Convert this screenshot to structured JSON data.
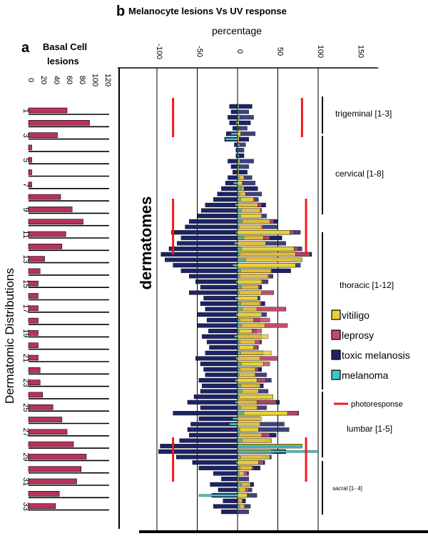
{
  "colors": {
    "vitiligo": "#e8d23a",
    "leprosy": "#c84a68",
    "toxic_melanosis": "#1c2466",
    "melanoma": "#3ec6cc",
    "photoresponse": "#ee1c1c",
    "basal": "#b8325a"
  },
  "chart_data": [
    {
      "panel": "a",
      "type": "bar",
      "orientation": "horizontal",
      "title": "Basal Cell lesions",
      "ylabel": "Dermatomic Distributions",
      "xlim": [
        0,
        120
      ],
      "x_ticks": [
        "0",
        "20",
        "40",
        "60",
        "80",
        "100",
        "120"
      ],
      "categories": [
        "1",
        "2",
        "3",
        "4",
        "5",
        "6",
        "7",
        "8",
        "9",
        "10",
        "11",
        "12",
        "13",
        "14",
        "15",
        "16",
        "17",
        "18",
        "19",
        "20",
        "21",
        "22",
        "23",
        "24",
        "25",
        "26",
        "27",
        "28",
        "29",
        "30",
        "31",
        "32",
        "33"
      ],
      "category_tick_labels": [
        "1",
        "3",
        "5",
        "7",
        "9",
        "11",
        "13",
        "15",
        "17",
        "19",
        "21",
        "23",
        "25",
        "27",
        "29",
        "31",
        "33"
      ],
      "values": [
        60,
        95,
        45,
        5,
        5,
        5,
        5,
        50,
        68,
        85,
        58,
        52,
        25,
        18,
        15,
        15,
        15,
        15,
        15,
        15,
        15,
        18,
        18,
        22,
        38,
        52,
        60,
        70,
        90,
        82,
        75,
        48,
        42
      ]
    },
    {
      "panel": "b",
      "type": "bar",
      "orientation": "horizontal-diverging",
      "title": "Melanocyte lesions Vs UV response",
      "xlabel": "percentage",
      "ylabel": "dermatomes",
      "xlim": [
        -100,
        150
      ],
      "x_ticks": [
        "-100",
        "-50",
        "0",
        "50",
        "100",
        "150"
      ],
      "legend_position": "right",
      "series": [
        {
          "name": "vitiligo",
          "values": [
            2,
            1,
            3,
            2,
            1,
            4,
            2,
            1,
            1,
            1,
            3,
            2,
            2,
            8,
            6,
            8,
            10,
            20,
            25,
            28,
            30,
            40,
            30,
            65,
            32,
            35,
            70,
            72,
            80,
            72,
            42,
            38,
            30,
            26,
            30,
            25,
            28,
            24,
            30,
            20,
            34,
            18,
            38,
            22,
            20,
            42,
            28,
            32,
            22,
            22,
            24,
            28,
            26,
            44,
            24,
            24,
            62,
            30,
            28,
            26,
            30,
            42,
            80,
            42,
            40,
            26,
            18,
            8,
            2,
            16,
            10,
            12,
            6,
            8,
            1
          ]
        },
        {
          "name": "leprosy",
          "values": [
            2,
            1,
            3,
            2,
            1,
            4,
            2,
            1,
            1,
            1,
            3,
            2,
            2,
            8,
            6,
            8,
            10,
            22,
            30,
            30,
            28,
            45,
            32,
            70,
            40,
            35,
            75,
            90,
            70,
            60,
            40,
            40,
            32,
            28,
            45,
            24,
            30,
            60,
            25,
            40,
            62,
            30,
            30,
            28,
            25,
            30,
            50,
            40,
            26,
            20,
            35,
            22,
            24,
            38,
            48,
            26,
            75,
            28,
            28,
            22,
            40,
            35,
            80,
            45,
            30,
            32,
            20,
            12,
            2,
            12,
            14,
            10,
            6,
            10,
            1
          ]
        },
        {
          "name": "toxic melanosis",
          "values": [
            18,
            14,
            20,
            16,
            12,
            22,
            14,
            10,
            8,
            8,
            20,
            14,
            12,
            18,
            22,
            25,
            30,
            26,
            35,
            30,
            36,
            50,
            50,
            78,
            55,
            60,
            80,
            92,
            80,
            78,
            66,
            44,
            38,
            30,
            30,
            28,
            34,
            30,
            36,
            28,
            40,
            24,
            30,
            30,
            26,
            32,
            34,
            30,
            30,
            36,
            42,
            32,
            38,
            44,
            52,
            36,
            76,
            28,
            58,
            64,
            48,
            42,
            20,
            60,
            42,
            34,
            28,
            14,
            14,
            20,
            18,
            24,
            10,
            16,
            14
          ]
        },
        {
          "name": "melanoma",
          "values": [
            2,
            1,
            3,
            -2,
            1,
            -8,
            -15,
            3,
            1,
            2,
            1,
            2,
            1,
            2,
            -5,
            5,
            3,
            4,
            -3,
            5,
            4,
            6,
            2,
            -2,
            8,
            -4,
            5,
            3,
            10,
            -6,
            4,
            3,
            -2,
            5,
            2,
            -3,
            4,
            6,
            -2,
            3,
            5,
            2,
            -4,
            3,
            2,
            4,
            -2,
            5,
            3,
            2,
            -3,
            4,
            6,
            2,
            -3,
            4,
            8,
            -6,
            -10,
            3,
            2,
            6,
            80,
            100,
            4,
            -2,
            3,
            2,
            1,
            5,
            2,
            -48,
            1,
            3,
            1
          ]
        },
        {
          "name": "photoresponse",
          "values": []
        }
      ],
      "left_values": [
        -10,
        -8,
        -12,
        -10,
        -6,
        -14,
        -16,
        -4,
        -2,
        -2,
        -12,
        -8,
        -6,
        -12,
        -15,
        -20,
        -25,
        -30,
        -40,
        -45,
        -50,
        -60,
        -65,
        -82,
        -70,
        -75,
        -85,
        -95,
        -90,
        -80,
        -70,
        -60,
        -52,
        -46,
        -60,
        -42,
        -46,
        -40,
        -50,
        -38,
        -50,
        -36,
        -44,
        -38,
        -35,
        -40,
        -52,
        -46,
        -42,
        -40,
        -48,
        -44,
        -46,
        -54,
        -62,
        -46,
        -80,
        -48,
        -58,
        -62,
        -60,
        -72,
        -96,
        -98,
        -76,
        -56,
        -48,
        -30,
        -20,
        -34,
        -24,
        -32,
        -18,
        -30,
        -20
      ],
      "regions": [
        {
          "label": "trigeminal [1-3]"
        },
        {
          "label": "cervical [1-8]"
        },
        {
          "label": "thoracic [1-12]"
        },
        {
          "label": "lumbar [1-5]"
        },
        {
          "label": "sacral [1- 4]"
        }
      ],
      "photoresponse_ranges": [
        {
          "left": -80,
          "right": 80
        },
        {
          "left": -80,
          "right": 85
        },
        {
          "left": -80,
          "right": 85
        }
      ]
    }
  ]
}
